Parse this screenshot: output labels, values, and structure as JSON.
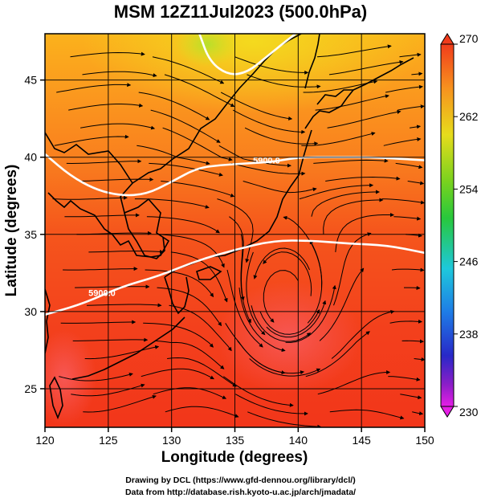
{
  "title": "MSM 12Z11Jul2023 (500.0hPa)",
  "map": {
    "x_axis": {
      "label": "Longitude (degrees)",
      "range": [
        120,
        150
      ],
      "ticks": [
        120,
        125,
        130,
        135,
        140,
        145,
        150
      ]
    },
    "y_axis": {
      "label": "Latitude  (degrees)",
      "range": [
        22.5,
        48
      ],
      "ticks": [
        25,
        30,
        35,
        40,
        45
      ]
    },
    "field": "temperature",
    "contours": [
      {
        "label": "5900.0",
        "lat_at_lon": [
          [
            120,
            29.8
          ],
          [
            123,
            30.5
          ],
          [
            126,
            31.6
          ],
          [
            129,
            32.3
          ],
          [
            132,
            33.3
          ],
          [
            135,
            34.0
          ],
          [
            138,
            34.6
          ],
          [
            141,
            34.6
          ],
          [
            144,
            34.4
          ],
          [
            147,
            34.3
          ],
          [
            150,
            33.8
          ]
        ]
      },
      {
        "label": "5900.0",
        "lat_at_lon": [
          [
            120,
            40.2
          ],
          [
            122,
            38.8
          ],
          [
            124,
            37.9
          ],
          [
            126,
            37.5
          ],
          [
            128,
            37.6
          ],
          [
            130,
            38.4
          ],
          [
            132,
            39.3
          ],
          [
            134,
            39.5
          ],
          [
            136,
            39.6
          ],
          [
            138,
            39.7
          ],
          [
            140,
            40.0
          ],
          [
            143,
            40.0
          ],
          [
            146,
            40.0
          ],
          [
            150,
            39.8
          ]
        ]
      },
      {
        "label": "",
        "lat_at_lon": [
          [
            132.2,
            48
          ],
          [
            133,
            46.2
          ],
          [
            134.5,
            45.3
          ],
          [
            136,
            45.5
          ],
          [
            137.5,
            46.5
          ],
          [
            139,
            47.5
          ],
          [
            139.8,
            48
          ]
        ]
      }
    ],
    "labeled_contours": [
      {
        "text": "5900.0",
        "lon": 124.5,
        "lat": 31.0
      },
      {
        "text": "5900.0",
        "lon": 137.5,
        "lat": 39.6
      }
    ],
    "colorbar": {
      "min": 230,
      "max": 270,
      "ticks": [
        270,
        262,
        254,
        246,
        238,
        230
      ]
    },
    "colors": {
      "warm": "#f2401e",
      "hot": "#f52a18",
      "mid": "#fb8c1e",
      "cool": "#f7c11c",
      "green": "#c8d622",
      "contour": "#ffffff"
    }
  },
  "credits": {
    "line1": "Drawing by DCL (https://www.gfd-dennou.org/library/dcl/)",
    "line2": "Data from http://database.rish.kyoto-u.ac.jp/arch/jmadata/"
  }
}
